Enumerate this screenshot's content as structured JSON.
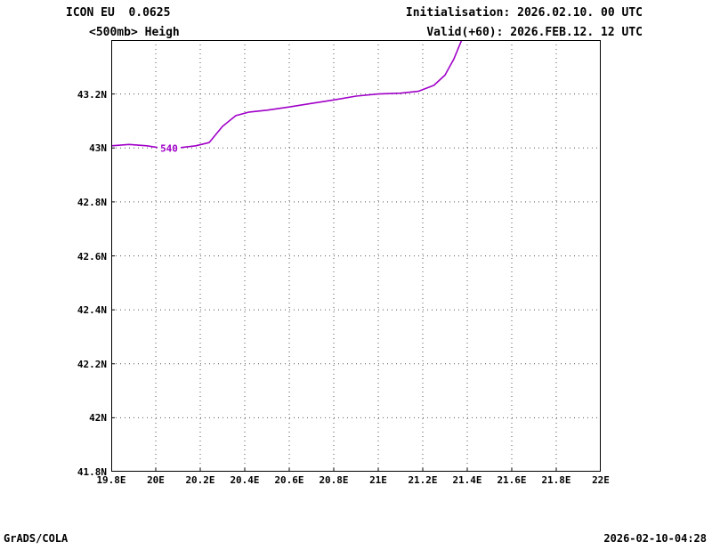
{
  "header": {
    "model_line": "ICON EU  0.0625",
    "field_line": "<500mb> Heigh",
    "init_line": "Initialisation: 2026.02.10. 00 UTC",
    "valid_line": "Valid(+60): 2026.FEB.12. 12 UTC"
  },
  "footer": {
    "left": "GrADS/COLA",
    "right": "2026-02-10-04:28"
  },
  "colors": {
    "contour": "#A000C8",
    "grid": "#555555",
    "border": "#000000"
  },
  "chart_data": {
    "type": "line",
    "title": "<500mb> Heigh",
    "xlabel": "",
    "ylabel": "",
    "xlim": [
      19.8,
      22.0
    ],
    "ylim": [
      41.8,
      43.4
    ],
    "grid": true,
    "grid_style": "dotted",
    "x_ticks": [
      {
        "label": "19.8E",
        "value": 19.8
      },
      {
        "label": "20E",
        "value": 20.0
      },
      {
        "label": "20.2E",
        "value": 20.2
      },
      {
        "label": "20.4E",
        "value": 20.4
      },
      {
        "label": "20.6E",
        "value": 20.6
      },
      {
        "label": "20.8E",
        "value": 20.8
      },
      {
        "label": "21E",
        "value": 21.0
      },
      {
        "label": "21.2E",
        "value": 21.2
      },
      {
        "label": "21.4E",
        "value": 21.4
      },
      {
        "label": "21.6E",
        "value": 21.6
      },
      {
        "label": "21.8E",
        "value": 21.8
      },
      {
        "label": "22E",
        "value": 22.0
      }
    ],
    "y_ticks": [
      {
        "label": "43.2N",
        "value": 43.2
      },
      {
        "label": "43N",
        "value": 43.0
      },
      {
        "label": "42.8N",
        "value": 42.8
      },
      {
        "label": "42.6N",
        "value": 42.6
      },
      {
        "label": "42.4N",
        "value": 42.4
      },
      {
        "label": "42.2N",
        "value": 42.2
      },
      {
        "label": "42N",
        "value": 42.0
      },
      {
        "label": "41.8N",
        "value": 41.8
      }
    ],
    "series": [
      {
        "name": "540",
        "color": "#A000C8",
        "label": {
          "text": "540",
          "lon": 20.06,
          "lat": 43.0
        },
        "points": [
          [
            19.8,
            43.008
          ],
          [
            19.88,
            43.013
          ],
          [
            19.96,
            43.008
          ],
          [
            20.02,
            43.0
          ],
          [
            20.1,
            43.0
          ],
          [
            20.18,
            43.008
          ],
          [
            20.24,
            43.02
          ],
          [
            20.3,
            43.08
          ],
          [
            20.36,
            43.12
          ],
          [
            20.42,
            43.133
          ],
          [
            20.5,
            43.14
          ],
          [
            20.6,
            43.152
          ],
          [
            20.7,
            43.165
          ],
          [
            20.8,
            43.178
          ],
          [
            20.9,
            43.192
          ],
          [
            21.0,
            43.2
          ],
          [
            21.1,
            43.203
          ],
          [
            21.18,
            43.21
          ],
          [
            21.25,
            43.232
          ],
          [
            21.3,
            43.27
          ],
          [
            21.34,
            43.33
          ],
          [
            21.38,
            43.41
          ]
        ]
      }
    ]
  }
}
